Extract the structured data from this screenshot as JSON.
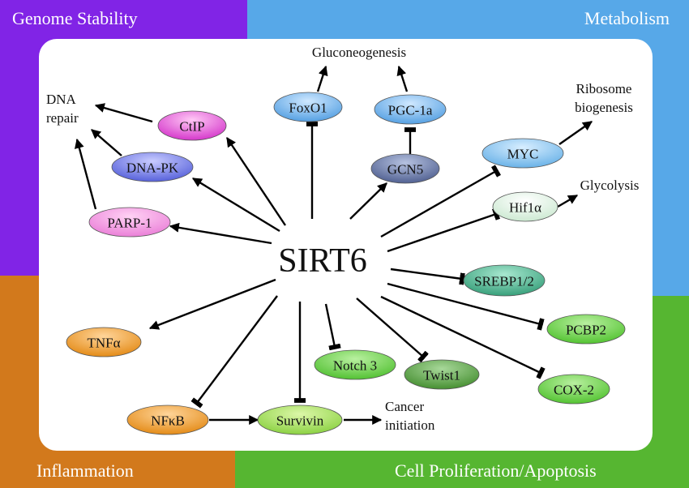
{
  "sections": [
    "Genome Stability",
    "Metabolism",
    "Inflammation",
    "Cell Proliferation/Apoptosis"
  ],
  "center": "SIRT6",
  "nodes": [
    {
      "label": "FoxO1"
    },
    {
      "label": "PGC-1a"
    },
    {
      "label": "CtIP"
    },
    {
      "label": "DNA-PK"
    },
    {
      "label": "GCN5"
    },
    {
      "label": "MYC"
    },
    {
      "label": "Hif1α"
    },
    {
      "label": "PARP-1"
    },
    {
      "label": "SREBP1/2"
    },
    {
      "label": "PCBP2"
    },
    {
      "label": "TNFα"
    },
    {
      "label": "Notch 3"
    },
    {
      "label": "Twist1"
    },
    {
      "label": "COX-2"
    },
    {
      "label": "NFκB"
    },
    {
      "label": "Survivin"
    }
  ],
  "outcomes": [
    {
      "lines": [
        "Gluconeogenesis"
      ]
    },
    {
      "lines": [
        "DNA",
        "repair"
      ]
    },
    {
      "lines": [
        "Ribosome",
        "biogenesis"
      ]
    },
    {
      "lines": [
        "Glycolysis"
      ]
    },
    {
      "lines": [
        "Cancer",
        "initiation"
      ]
    }
  ]
}
